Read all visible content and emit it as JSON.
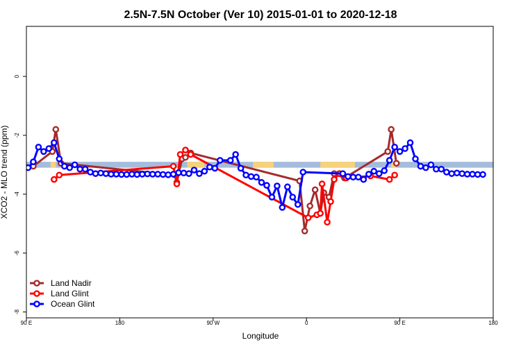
{
  "chart_data": {
    "type": "line",
    "title": "2.5N-7.5N October (Ver 10)   2015-01-01 to 2020-12-18",
    "xlabel": "Longitude",
    "ylabel": "XCO2 - MLO trend (ppm)",
    "xlim": [
      -90,
      180
    ],
    "ylim": [
      -8.2,
      1.7
    ],
    "x_ticks": [
      {
        "value": -90,
        "label": "90 E"
      },
      {
        "value": -36,
        "label": "180"
      },
      {
        "value": 18,
        "label": "90 W"
      },
      {
        "value": 72,
        "label": "0"
      },
      {
        "value": 126,
        "label": "90 E"
      },
      {
        "value": 180,
        "label": "180"
      }
    ],
    "y_ticks": [
      {
        "value": 0,
        "label": "0"
      },
      {
        "value": -2,
        "label": "-2"
      },
      {
        "value": -4,
        "label": "-4"
      },
      {
        "value": -6,
        "label": "-6"
      },
      {
        "value": -8,
        "label": "-8"
      }
    ],
    "grid": false,
    "legend_position": "bottom-left",
    "background_band": {
      "ymin": -3.1,
      "ymax": -2.9,
      "ocean_color": "#a5bcdc",
      "land_color": "#f6d27a"
    },
    "land_segments": [
      [
        -76,
        -73
      ],
      [
        3,
        13
      ],
      [
        41,
        53
      ],
      [
        80,
        100
      ],
      [
        121,
        124
      ]
    ],
    "series": [
      {
        "name": "Land Nadir",
        "color": "#a52a2a",
        "points": [
          [
            -86,
            -3.05
          ],
          [
            -75,
            -2.55
          ],
          [
            -73,
            -1.8
          ],
          [
            -70,
            -2.95
          ],
          [
            -4,
            -3.35
          ],
          [
            -3,
            -3.6
          ],
          [
            0,
            -2.8
          ],
          [
            2,
            -2.75
          ],
          [
            5,
            -2.6
          ],
          [
            68,
            -3.55
          ],
          [
            71,
            -5.25
          ],
          [
            74,
            -4.4
          ],
          [
            77,
            -3.85
          ],
          [
            80,
            -4.65
          ],
          [
            82,
            -3.95
          ],
          [
            85,
            -4.1
          ],
          [
            88,
            -3.3
          ],
          [
            91,
            -3.3
          ],
          [
            94,
            -3.45
          ],
          [
            119,
            -2.55
          ],
          [
            121,
            -1.8
          ],
          [
            124,
            -2.95
          ]
        ]
      },
      {
        "name": "Land Glint",
        "color": "#ff0000",
        "points": [
          [
            -74,
            -3.5
          ],
          [
            -71,
            -3.35
          ],
          [
            -5,
            -3.05
          ],
          [
            -3,
            -3.65
          ],
          [
            -1,
            -2.65
          ],
          [
            2,
            -2.5
          ],
          [
            5,
            -2.65
          ],
          [
            73,
            -4.8
          ],
          [
            78,
            -4.7
          ],
          [
            80,
            -4.65
          ],
          [
            81,
            -3.65
          ],
          [
            84,
            -4.95
          ],
          [
            86,
            -4.25
          ],
          [
            88,
            -3.5
          ],
          [
            91,
            -3.3
          ],
          [
            93,
            -3.35
          ],
          [
            95,
            -3.45
          ],
          [
            109,
            -3.38
          ],
          [
            120,
            -3.5
          ],
          [
            123,
            -3.35
          ]
        ]
      },
      {
        "name": "Ocean Glint",
        "color": "#0000ff",
        "points": [
          [
            -89,
            -3.1
          ],
          [
            -86,
            -2.9
          ],
          [
            -83,
            -2.4
          ],
          [
            -80,
            -2.55
          ],
          [
            -77,
            -2.45
          ],
          [
            -74,
            -2.25
          ],
          [
            -71,
            -2.8
          ],
          [
            -68,
            -3.05
          ],
          [
            -65,
            -3.1
          ],
          [
            -62,
            -3.0
          ],
          [
            -59,
            -3.15
          ],
          [
            -56,
            -3.15
          ],
          [
            -53,
            -3.25
          ],
          [
            -50,
            -3.3
          ],
          [
            -47,
            -3.28
          ],
          [
            -44,
            -3.3
          ],
          [
            -41,
            -3.32
          ],
          [
            -38,
            -3.32
          ],
          [
            -35,
            -3.33
          ],
          [
            -32,
            -3.33
          ],
          [
            -29,
            -3.32
          ],
          [
            -26,
            -3.33
          ],
          [
            -23,
            -3.32
          ],
          [
            -20,
            -3.31
          ],
          [
            -17,
            -3.32
          ],
          [
            -14,
            -3.32
          ],
          [
            -11,
            -3.33
          ],
          [
            -8,
            -3.34
          ],
          [
            -5,
            -3.32
          ],
          [
            -2,
            -3.27
          ],
          [
            1,
            -3.28
          ],
          [
            4,
            -3.3
          ],
          [
            7,
            -3.18
          ],
          [
            10,
            -3.3
          ],
          [
            13,
            -3.22
          ],
          [
            16,
            -3.08
          ],
          [
            19,
            -3.12
          ],
          [
            22,
            -2.85
          ],
          [
            28,
            -2.85
          ],
          [
            31,
            -2.65
          ],
          [
            34,
            -3.12
          ],
          [
            37,
            -3.35
          ],
          [
            40,
            -3.4
          ],
          [
            43,
            -3.42
          ],
          [
            46,
            -3.6
          ],
          [
            49,
            -3.7
          ],
          [
            52,
            -4.1
          ],
          [
            55,
            -3.72
          ],
          [
            58,
            -4.45
          ],
          [
            61,
            -3.75
          ],
          [
            64,
            -4.1
          ],
          [
            67,
            -4.35
          ],
          [
            70,
            -3.25
          ],
          [
            93,
            -3.3
          ],
          [
            96,
            -3.4
          ],
          [
            99,
            -3.42
          ],
          [
            102,
            -3.42
          ],
          [
            105,
            -3.5
          ],
          [
            108,
            -3.32
          ],
          [
            111,
            -3.22
          ],
          [
            114,
            -3.3
          ],
          [
            117,
            -3.2
          ],
          [
            120,
            -2.85
          ],
          [
            123,
            -2.4
          ],
          [
            126,
            -2.55
          ],
          [
            129,
            -2.45
          ],
          [
            132,
            -2.25
          ],
          [
            135,
            -2.8
          ],
          [
            138,
            -3.05
          ],
          [
            141,
            -3.1
          ],
          [
            144,
            -3.0
          ],
          [
            147,
            -3.15
          ],
          [
            150,
            -3.15
          ],
          [
            153,
            -3.25
          ],
          [
            156,
            -3.3
          ],
          [
            159,
            -3.28
          ],
          [
            162,
            -3.3
          ],
          [
            165,
            -3.32
          ],
          [
            168,
            -3.32
          ],
          [
            171,
            -3.33
          ],
          [
            174,
            -3.33
          ]
        ]
      }
    ]
  }
}
